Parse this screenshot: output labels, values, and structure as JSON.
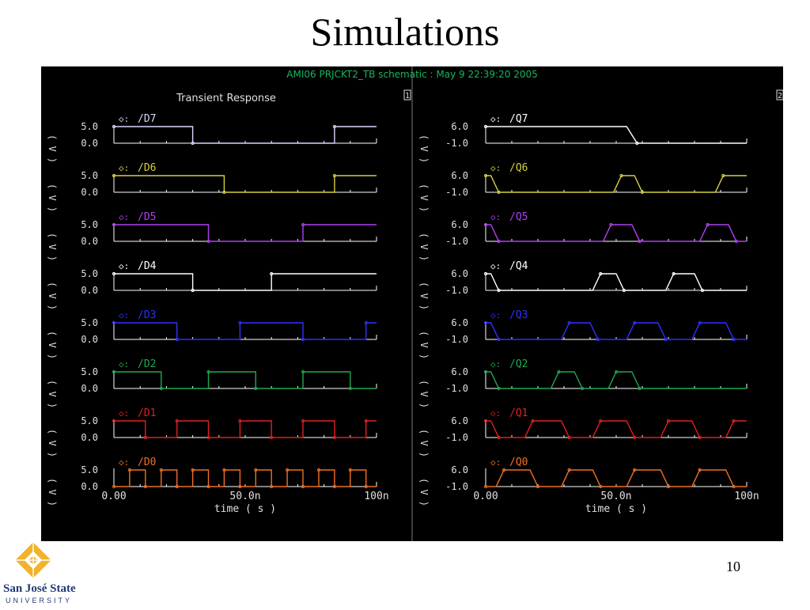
{
  "slide": {
    "title": "Simulations",
    "page_number": "10",
    "logo": {
      "line1": "San José State",
      "line2": "UNIVERSITY"
    }
  },
  "scope": {
    "header": "AMI06 PRJCKT2_TB schematic : May  9 22:39:20 2005",
    "panel_title": "Transient Response",
    "panel_badges": [
      "1",
      "2"
    ],
    "axis_unit_label": "V",
    "colors": {
      "background": "#000000",
      "header": "#19b45e",
      "text": "#e0e0e0",
      "axis": "#ffffff"
    }
  },
  "chart_data": [
    {
      "type": "line",
      "title": "Transient Response",
      "xlabel": "time ( s )",
      "ylabel": "( V )",
      "xlim": [
        0,
        100
      ],
      "x_ticks": [
        "0.00",
        "50.0n",
        "100n"
      ],
      "y_ticks": [
        "5.0",
        "0.0"
      ],
      "ylim": [
        0,
        5
      ],
      "series": [
        {
          "name": "/D7",
          "color": "#d8d8ff",
          "x": [
            0,
            30,
            30,
            84,
            84,
            100
          ],
          "values": [
            5,
            5,
            0,
            0,
            5,
            5
          ]
        },
        {
          "name": "/D6",
          "color": "#d8d040",
          "x": [
            0,
            42,
            42,
            84,
            84,
            100
          ],
          "values": [
            5,
            5,
            0,
            0,
            5,
            5
          ]
        },
        {
          "name": "/D5",
          "color": "#b040f0",
          "x": [
            0,
            36,
            36,
            72,
            72,
            100
          ],
          "values": [
            5,
            5,
            0,
            0,
            5,
            5
          ]
        },
        {
          "name": "/D4",
          "color": "#ffffff",
          "x": [
            0,
            30,
            30,
            60,
            60,
            100
          ],
          "values": [
            5,
            5,
            0,
            0,
            5,
            5
          ]
        },
        {
          "name": "/D3",
          "color": "#3030ff",
          "x": [
            0,
            24,
            24,
            48,
            48,
            72,
            72,
            96,
            96,
            100
          ],
          "values": [
            5,
            5,
            0,
            0,
            5,
            5,
            0,
            0,
            5,
            5
          ]
        },
        {
          "name": "/D2",
          "color": "#20a850",
          "x": [
            0,
            18,
            18,
            36,
            36,
            54,
            54,
            72,
            72,
            90,
            90,
            100
          ],
          "values": [
            5,
            5,
            0,
            0,
            5,
            5,
            0,
            0,
            5,
            5,
            0,
            0
          ]
        },
        {
          "name": "/D1",
          "color": "#e02020",
          "x": [
            0,
            12,
            12,
            24,
            24,
            36,
            36,
            48,
            48,
            60,
            60,
            72,
            72,
            84,
            84,
            96,
            96,
            100
          ],
          "values": [
            5,
            5,
            0,
            0,
            5,
            5,
            0,
            0,
            5,
            5,
            0,
            0,
            5,
            5,
            0,
            0,
            5,
            5
          ]
        },
        {
          "name": "/D0",
          "color": "#f07020",
          "x": [
            0,
            6,
            6,
            12,
            12,
            18,
            18,
            24,
            24,
            30,
            30,
            36,
            36,
            42,
            42,
            48,
            48,
            54,
            54,
            60,
            60,
            66,
            66,
            72,
            72,
            78,
            78,
            84,
            84,
            90,
            90,
            96,
            96,
            100
          ],
          "values": [
            0,
            0,
            5,
            5,
            0,
            0,
            5,
            5,
            0,
            0,
            5,
            5,
            0,
            0,
            5,
            5,
            0,
            0,
            5,
            5,
            0,
            0,
            5,
            5,
            0,
            0,
            5,
            5,
            0,
            0,
            5,
            5,
            0,
            0
          ]
        }
      ]
    },
    {
      "type": "line",
      "xlabel": "time ( s )",
      "ylabel": "( V )",
      "xlim": [
        0,
        100
      ],
      "x_ticks": [
        "0.00",
        "50.0n",
        "100n"
      ],
      "y_ticks": [
        "6.0",
        "-1.0"
      ],
      "ylim": [
        -1,
        6
      ],
      "series": [
        {
          "name": "/Q7",
          "color": "#ffffff",
          "x": [
            0,
            54,
            58,
            100
          ],
          "values": [
            6,
            6,
            -1,
            -1
          ]
        },
        {
          "name": "/Q6",
          "color": "#d8d040",
          "x": [
            0,
            2,
            5,
            49,
            52,
            57,
            60,
            88,
            91,
            100
          ],
          "values": [
            6,
            6,
            -1,
            -1,
            6,
            6,
            -1,
            -1,
            6,
            6
          ]
        },
        {
          "name": "/Q5",
          "color": "#b040f0",
          "x": [
            0,
            2,
            5,
            45,
            48,
            56,
            59,
            82,
            85,
            93,
            96,
            100
          ],
          "values": [
            6,
            6,
            -1,
            -1,
            6,
            6,
            -1,
            -1,
            6,
            6,
            -1,
            -1
          ]
        },
        {
          "name": "/Q4",
          "color": "#ffffff",
          "x": [
            0,
            2,
            5,
            41,
            44,
            50,
            53,
            69,
            72,
            80,
            83,
            100
          ],
          "values": [
            6,
            6,
            -1,
            -1,
            6,
            6,
            -1,
            -1,
            6,
            6,
            -1,
            -1
          ]
        },
        {
          "name": "/Q3",
          "color": "#3030ff",
          "x": [
            0,
            2,
            5,
            29,
            32,
            40,
            43,
            54,
            57,
            66,
            69,
            79,
            82,
            92,
            95,
            100
          ],
          "values": [
            6,
            6,
            -1,
            -1,
            6,
            6,
            -1,
            -1,
            6,
            6,
            -1,
            -1,
            6,
            6,
            -1,
            -1
          ]
        },
        {
          "name": "/Q2",
          "color": "#20a850",
          "x": [
            0,
            2,
            5,
            25,
            28,
            34,
            37,
            47,
            50,
            56,
            59,
            100
          ],
          "values": [
            6,
            6,
            -1,
            -1,
            6,
            6,
            -1,
            -1,
            6,
            6,
            -1,
            -1
          ]
        },
        {
          "name": "/Q1",
          "color": "#e02020",
          "x": [
            0,
            2,
            5,
            15,
            18,
            29,
            32,
            41,
            44,
            54,
            57,
            67,
            70,
            79,
            82,
            92,
            95,
            100
          ],
          "values": [
            6,
            6,
            -1,
            -1,
            6,
            6,
            -1,
            -1,
            6,
            6,
            -1,
            -1,
            6,
            6,
            -1,
            -1,
            6,
            6
          ]
        },
        {
          "name": "/Q0",
          "color": "#f07020",
          "x": [
            0,
            4,
            7,
            17,
            20,
            29,
            32,
            41,
            44,
            54,
            57,
            67,
            70,
            79,
            82,
            92,
            95,
            100
          ],
          "values": [
            -1,
            -1,
            6,
            6,
            -1,
            -1,
            6,
            6,
            -1,
            -1,
            6,
            6,
            -1,
            -1,
            6,
            6,
            -1,
            -1
          ]
        }
      ]
    }
  ]
}
